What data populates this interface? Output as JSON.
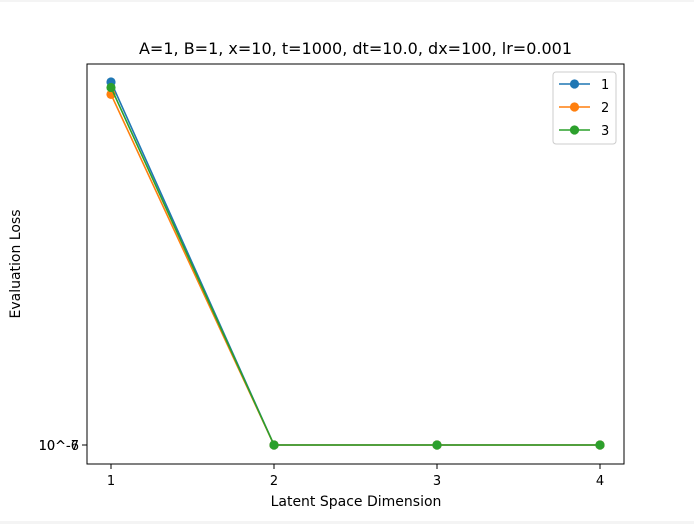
{
  "chart_data": {
    "type": "line",
    "title": "A=1, B=1, x=10, t=1000, dt=10.0, dx=100, lr=0.001",
    "xlabel": "Latent Space Dimension",
    "ylabel": "Evaluation Loss",
    "x": [
      1,
      2,
      3,
      4
    ],
    "x_tick_labels": [
      "1",
      "2",
      "3",
      "4"
    ],
    "y_tick_labels": [
      "10^-6",
      "10^-7"
    ],
    "yscale": "log",
    "grid": false,
    "legend_position": "top-right",
    "series": [
      {
        "name": "1",
        "color": "#1f77b4",
        "values": [
          1.0,
          0.0,
          0.0,
          0.0
        ]
      },
      {
        "name": "2",
        "color": "#ff7f0e",
        "values": [
          0.966,
          0.0,
          0.0,
          0.0
        ]
      },
      {
        "name": "3",
        "color": "#2ca02c",
        "values": [
          0.985,
          0.0,
          0.0,
          0.0
        ]
      }
    ]
  }
}
